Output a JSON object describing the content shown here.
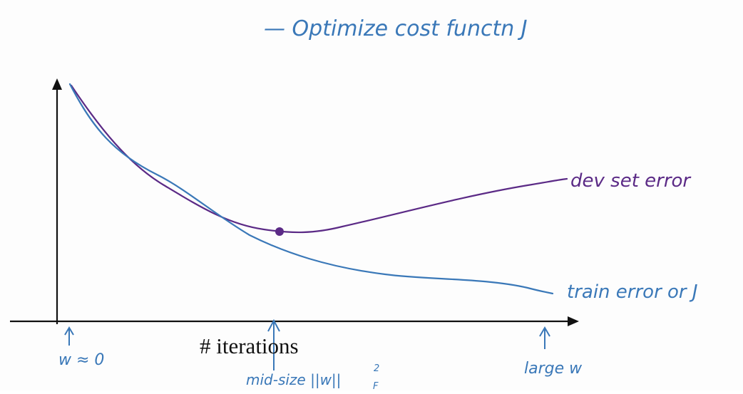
{
  "title": "— Optimize cost functn J",
  "axis": {
    "xlabel": "# iterations"
  },
  "curves": {
    "dev": {
      "label": "dev set error",
      "color": "#5b2a86"
    },
    "train": {
      "label": "train error or J",
      "color": "#3a78b8"
    }
  },
  "annotations": {
    "start": "w ≈ 0",
    "mid": "mid-size ||w||",
    "mid_sub": "F",
    "mid_sup": "2",
    "end": "large w"
  },
  "colors": {
    "ink_blue": "#3a78b8",
    "ink_purple": "#5b2a86",
    "axis": "#111111"
  }
}
